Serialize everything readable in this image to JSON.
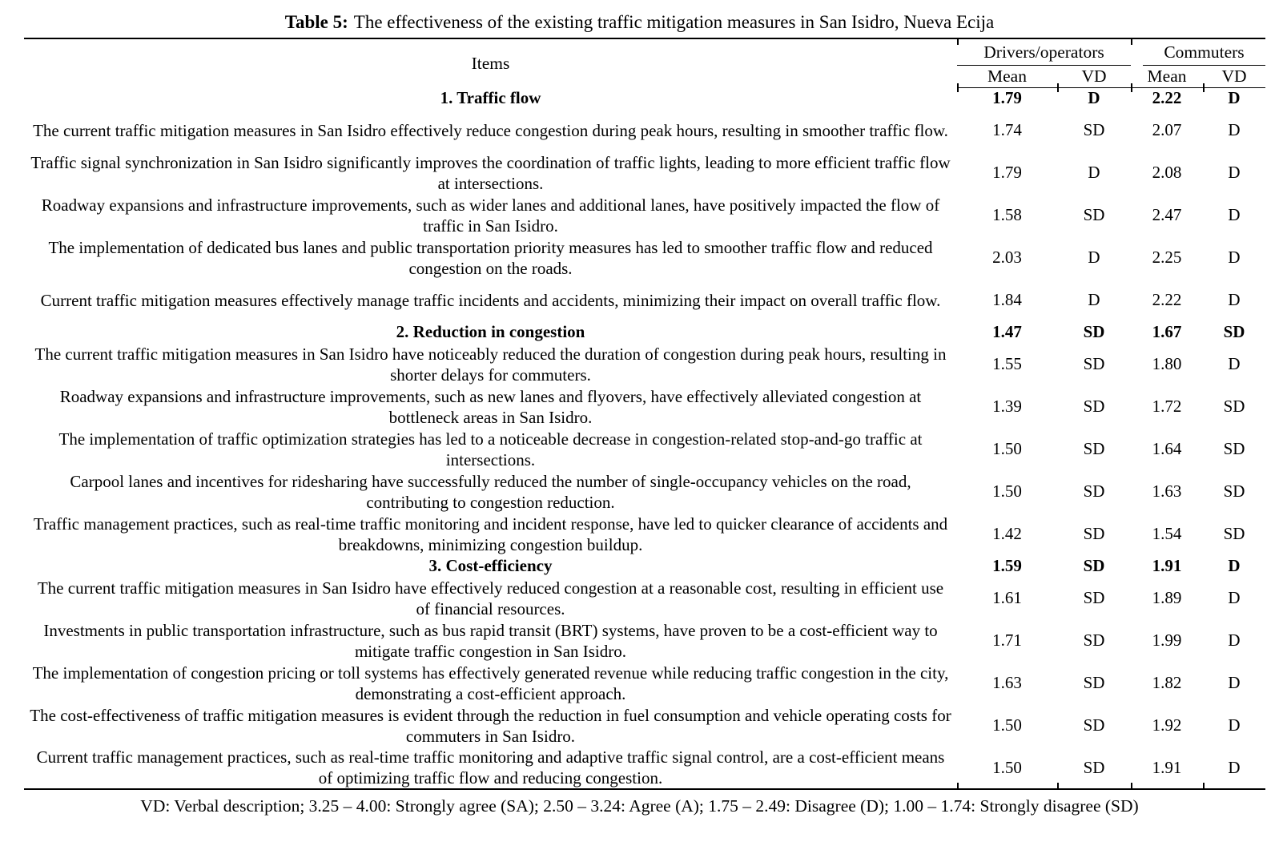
{
  "caption": {
    "label": "Table 5:",
    "text": "The effectiveness of the existing traffic mitigation measures in San Isidro, Nueva Ecija"
  },
  "colors": {
    "background": "#ffffff",
    "text": "#000000",
    "rules": "#000000"
  },
  "table": {
    "items_header": "Items",
    "groups": [
      {
        "label": "Drivers/operators",
        "columns": [
          "Mean",
          "VD"
        ]
      },
      {
        "label": "Commuters",
        "columns": [
          "Mean",
          "VD"
        ]
      }
    ],
    "rows": [
      {
        "type": "section",
        "text": "1. Traffic flow",
        "d_mean": "1.79",
        "d_vd": "D",
        "c_mean": "2.22",
        "c_vd": "D"
      },
      {
        "type": "item",
        "text": "The current traffic mitigation measures in San Isidro effectively reduce congestion during peak hours, resulting in smoother traffic flow.",
        "d_mean": "1.74",
        "d_vd": "SD",
        "c_mean": "2.07",
        "c_vd": "D"
      },
      {
        "type": "item",
        "text": "Traffic signal synchronization in San Isidro significantly improves the coordination of traffic lights, leading to more efficient traffic flow at intersections.",
        "d_mean": "1.79",
        "d_vd": "D",
        "c_mean": "2.08",
        "c_vd": "D"
      },
      {
        "type": "item",
        "text": "Roadway expansions and infrastructure improvements, such as wider lanes and additional lanes, have positively impacted the flow of traffic in San Isidro.",
        "d_mean": "1.58",
        "d_vd": "SD",
        "c_mean": "2.47",
        "c_vd": "D"
      },
      {
        "type": "item",
        "text": "The implementation of dedicated bus lanes and public transportation priority measures has led to smoother traffic flow and reduced congestion on the roads.",
        "d_mean": "2.03",
        "d_vd": "D",
        "c_mean": "2.25",
        "c_vd": "D"
      },
      {
        "type": "item",
        "text": "Current traffic mitigation measures effectively manage traffic incidents and accidents, minimizing their impact on overall traffic flow.",
        "d_mean": "1.84",
        "d_vd": "D",
        "c_mean": "2.22",
        "c_vd": "D"
      },
      {
        "type": "section",
        "text": "2. Reduction in congestion",
        "d_mean": "1.47",
        "d_vd": "SD",
        "c_mean": "1.67",
        "c_vd": "SD"
      },
      {
        "type": "item",
        "text": "The current traffic mitigation measures in San Isidro have noticeably reduced the duration of congestion during peak hours, resulting in shorter delays for commuters.",
        "d_mean": "1.55",
        "d_vd": "SD",
        "c_mean": "1.80",
        "c_vd": "D"
      },
      {
        "type": "item",
        "text": "Roadway expansions and infrastructure improvements, such as new lanes and flyovers, have effectively alleviated congestion at bottleneck areas in San Isidro.",
        "d_mean": "1.39",
        "d_vd": "SD",
        "c_mean": "1.72",
        "c_vd": "SD"
      },
      {
        "type": "item",
        "text": "The implementation of traffic optimization strategies has led to a noticeable decrease in congestion-related stop-and-go traffic at intersections.",
        "d_mean": "1.50",
        "d_vd": "SD",
        "c_mean": "1.64",
        "c_vd": "SD"
      },
      {
        "type": "item",
        "text": "Carpool lanes and incentives for ridesharing have successfully reduced the number of single-occupancy vehicles on the road, contributing to congestion reduction.",
        "d_mean": "1.50",
        "d_vd": "SD",
        "c_mean": "1.63",
        "c_vd": "SD"
      },
      {
        "type": "item",
        "text": "Traffic management practices, such as real-time traffic monitoring and incident response, have led to quicker clearance of accidents and breakdowns, minimizing congestion buildup.",
        "d_mean": "1.42",
        "d_vd": "SD",
        "c_mean": "1.54",
        "c_vd": "SD"
      },
      {
        "type": "section",
        "text": "3. Cost-efficiency",
        "d_mean": "1.59",
        "d_vd": "SD",
        "c_mean": "1.91",
        "c_vd": "D"
      },
      {
        "type": "item",
        "text": "The current traffic mitigation measures in San Isidro have effectively reduced congestion at a reasonable cost, resulting in efficient use of financial resources.",
        "d_mean": "1.61",
        "d_vd": "SD",
        "c_mean": "1.89",
        "c_vd": "D"
      },
      {
        "type": "item",
        "text": "Investments in public transportation infrastructure, such as bus rapid transit (BRT) systems, have proven to be a cost-efficient way to mitigate traffic congestion in San Isidro.",
        "d_mean": "1.71",
        "d_vd": "SD",
        "c_mean": "1.99",
        "c_vd": "D"
      },
      {
        "type": "item",
        "text": "The implementation of congestion pricing or toll systems has effectively generated revenue while reducing traffic congestion in the city, demonstrating a cost-efficient approach.",
        "d_mean": "1.63",
        "d_vd": "SD",
        "c_mean": "1.82",
        "c_vd": "D"
      },
      {
        "type": "item",
        "text": "The cost-effectiveness of traffic mitigation measures is evident through the reduction in fuel consumption and vehicle operating costs for commuters in San Isidro.",
        "d_mean": "1.50",
        "d_vd": "SD",
        "c_mean": "1.92",
        "c_vd": "D"
      },
      {
        "type": "item",
        "text": "Current traffic management practices, such as real-time traffic monitoring and adaptive traffic signal control, are a cost-efficient means of optimizing traffic flow and reducing congestion.",
        "d_mean": "1.50",
        "d_vd": "SD",
        "c_mean": "1.91",
        "c_vd": "D"
      }
    ]
  },
  "footnote": "VD: Verbal description; 3.25 – 4.00: Strongly agree (SA); 2.50 – 3.24: Agree (A); 1.75 – 2.49: Disagree (D); 1.00 – 1.74: Strongly disagree (SD)"
}
